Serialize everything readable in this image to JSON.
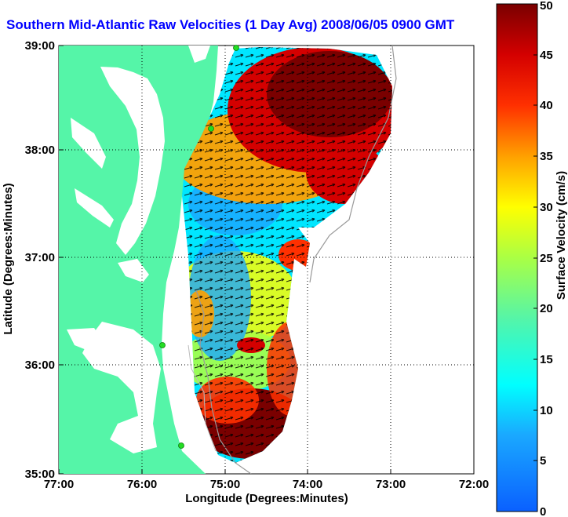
{
  "map": {
    "title": "Southern Mid-Atlantic Raw Velocities (1 Day Avg) 2008/06/05 0900 GMT",
    "xlabel": "Longitude (Degrees:Minutes)",
    "ylabel": "Latitude (Degrees:Minutes)",
    "x_ticks": [
      "77:00",
      "76:00",
      "75:00",
      "74:00",
      "73:00",
      "72:00"
    ],
    "y_ticks": [
      "39:00",
      "38:00",
      "37:00",
      "36:00",
      "35:00"
    ],
    "land_color": "#55f5a8",
    "water_color": "#ffffff",
    "arrow_color": "#000000",
    "grid": "dotted",
    "station_marker_color": "#22dd22"
  },
  "colorbar": {
    "label": "Surface Velocity (cm/s)",
    "ticks": [
      "0",
      "5",
      "10",
      "15",
      "20",
      "25",
      "30",
      "35",
      "40",
      "45",
      "50"
    ],
    "range": [
      0,
      50
    ],
    "colormap": "jet"
  },
  "chart_data": {
    "type": "heatmap",
    "title": "Southern Mid-Atlantic Raw Velocities (1 Day Avg) 2008/06/05 0900 GMT",
    "xlabel": "Longitude (Degrees:Minutes)",
    "ylabel": "Latitude (Degrees:Minutes)",
    "xlim": [
      "77:00",
      "72:00"
    ],
    "ylim": [
      "35:00",
      "39:00"
    ],
    "colorbar_label": "Surface Velocity (cm/s)",
    "colorbar_range": [
      0,
      50
    ]
  }
}
